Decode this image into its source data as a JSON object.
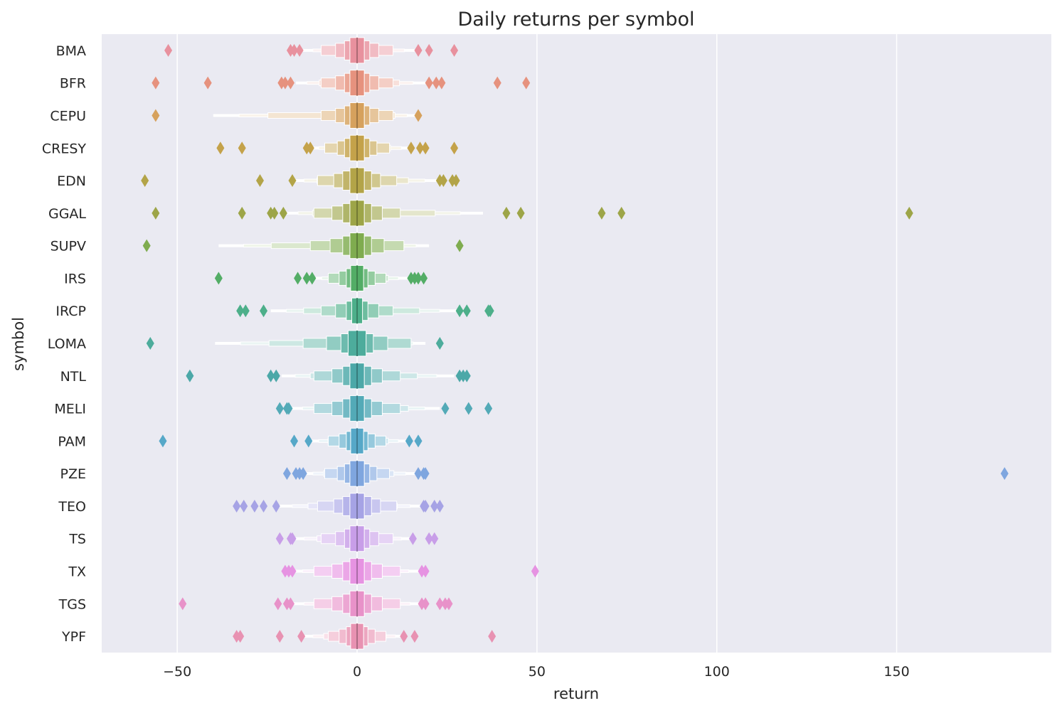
{
  "chart_data": {
    "type": "boxenplot",
    "title": "Daily returns per symbol",
    "xlabel": "return",
    "ylabel": "symbol",
    "xlim": [
      -71,
      193
    ],
    "xticks": [
      -50,
      0,
      50,
      100,
      150
    ],
    "grid": true,
    "orientation": "horizontal",
    "categories": [
      "BMA",
      "BFR",
      "CEPU",
      "CRESY",
      "EDN",
      "GGAL",
      "SUPV",
      "IRS",
      "IRCP",
      "LOMA",
      "NTL",
      "MELI",
      "PAM",
      "PZE",
      "TEO",
      "TS",
      "TX",
      "TGS",
      "YPF"
    ],
    "colors": [
      "#e8919e",
      "#e6927e",
      "#d6a15d",
      "#c4a24a",
      "#b3a448",
      "#9da548",
      "#7fac4f",
      "#53ad66",
      "#4daf8a",
      "#4dac9c",
      "#4ca8a8",
      "#53aab7",
      "#56a8c8",
      "#7fa6df",
      "#a6a3e5",
      "#c89ee8",
      "#e693e2",
      "#e892c9",
      "#e892b2"
    ],
    "series": [
      {
        "symbol": "BMA",
        "median": 0,
        "whisker": [
          -15,
          16
        ],
        "halfwidths": [
          10,
          6,
          3.5,
          2
        ],
        "outliers": [
          -52.5,
          -18.5,
          -17.5,
          -16,
          17,
          20,
          27
        ]
      },
      {
        "symbol": "BFR",
        "median": 0,
        "whisker": [
          -17,
          19
        ],
        "halfwidths": [
          10,
          6,
          3.5,
          2
        ],
        "outliers": [
          -56,
          -41.5,
          -21,
          -20,
          -18.5,
          20,
          22,
          23.5,
          39,
          47
        ]
      },
      {
        "symbol": "CEPU",
        "median": 0,
        "whisker": [
          -40,
          17
        ],
        "halfwidths": [
          10,
          6,
          3.5,
          2
        ],
        "outliers": [
          -56,
          17
        ]
      },
      {
        "symbol": "CRESY",
        "median": 0,
        "whisker": [
          -13,
          15
        ],
        "halfwidths": [
          9,
          5.5,
          3.5,
          2
        ],
        "outliers": [
          -38,
          -32,
          -14,
          -13,
          15,
          17.5,
          19,
          27
        ]
      },
      {
        "symbol": "EDN",
        "median": 0,
        "whisker": [
          -18,
          23
        ],
        "halfwidths": [
          11,
          6.5,
          4,
          2
        ],
        "outliers": [
          -59,
          -27,
          -18,
          23,
          24,
          26.5,
          27.5
        ]
      },
      {
        "symbol": "GGAL",
        "median": 0,
        "whisker": [
          -20,
          35
        ],
        "halfwidths": [
          12,
          7,
          4,
          2
        ],
        "outliers": [
          -56,
          -32,
          -24,
          -23,
          -20.5,
          41.5,
          45.5,
          68,
          73.5,
          153.5
        ]
      },
      {
        "symbol": "SUPV",
        "median": 0,
        "whisker": [
          -38.5,
          20
        ],
        "halfwidths": [
          13,
          7.5,
          4,
          2
        ],
        "outliers": [
          -58.5,
          28.5
        ]
      },
      {
        "symbol": "IRS",
        "median": 0,
        "whisker": [
          -12,
          14
        ],
        "halfwidths": [
          8,
          5,
          3,
          1.8
        ],
        "outliers": [
          -38.5,
          -16.5,
          -14,
          -12.5,
          15,
          16,
          17,
          18.5
        ]
      },
      {
        "symbol": "IRCP",
        "median": 0,
        "whisker": [
          -24,
          28
        ],
        "halfwidths": [
          10,
          6,
          3,
          1.5
        ],
        "outliers": [
          -32.5,
          -31,
          -26,
          28.5,
          30.5,
          36.5,
          37
        ]
      },
      {
        "symbol": "LOMA",
        "median": 0,
        "whisker": [
          -39.5,
          19
        ],
        "halfwidths": [
          15,
          8.5,
          4.5,
          2.5
        ],
        "outliers": [
          -57.5,
          23
        ]
      },
      {
        "symbol": "NTL",
        "median": 0,
        "whisker": [
          -21,
          27
        ],
        "halfwidths": [
          12,
          7,
          4,
          2
        ],
        "outliers": [
          -46.5,
          -24,
          -22.5,
          28.5,
          29.5,
          30.5
        ]
      },
      {
        "symbol": "MELI",
        "median": 0,
        "whisker": [
          -18.5,
          23
        ],
        "halfwidths": [
          12,
          7,
          4,
          2
        ],
        "outliers": [
          -21.5,
          -19.5,
          -19,
          24.5,
          31,
          36.5
        ]
      },
      {
        "symbol": "PAM",
        "median": 0,
        "whisker": [
          -13,
          14
        ],
        "halfwidths": [
          8,
          5,
          3,
          1.8
        ],
        "outliers": [
          -54,
          -17.5,
          -13.5,
          14.5,
          17
        ]
      },
      {
        "symbol": "PZE",
        "median": 0,
        "whisker": [
          -15,
          16.5
        ],
        "halfwidths": [
          9,
          5.5,
          3.5,
          2
        ],
        "outliers": [
          -19.5,
          -17,
          -16,
          -15,
          17,
          18.5,
          19,
          180
        ]
      },
      {
        "symbol": "TEO",
        "median": 0,
        "whisker": [
          -22,
          18
        ],
        "halfwidths": [
          11,
          6.5,
          4,
          2
        ],
        "outliers": [
          -33.5,
          -31.5,
          -28.5,
          -26,
          -22.5,
          18.5,
          19,
          21.5,
          23
        ]
      },
      {
        "symbol": "TS",
        "median": 0,
        "whisker": [
          -18,
          15
        ],
        "halfwidths": [
          10,
          6,
          3.5,
          2
        ],
        "outliers": [
          -21.5,
          -18.5,
          -18,
          15.5,
          20,
          21.5
        ]
      },
      {
        "symbol": "TX",
        "median": 0,
        "whisker": [
          -18.5,
          17.5
        ],
        "halfwidths": [
          12,
          7,
          4,
          2
        ],
        "outliers": [
          -20,
          -19,
          -18,
          18,
          19,
          49.5
        ]
      },
      {
        "symbol": "TGS",
        "median": 0,
        "whisker": [
          -18,
          18
        ],
        "halfwidths": [
          12,
          7,
          4,
          2
        ],
        "outliers": [
          -48.5,
          -22,
          -19.5,
          -18.5,
          18,
          19,
          23,
          24.5,
          25.5
        ]
      },
      {
        "symbol": "YPF",
        "median": 0,
        "whisker": [
          -15,
          13
        ],
        "halfwidths": [
          8,
          5,
          3,
          1.8
        ],
        "outliers": [
          -33.5,
          -32.5,
          -21.5,
          -15.5,
          13,
          16,
          37.5
        ]
      }
    ]
  }
}
